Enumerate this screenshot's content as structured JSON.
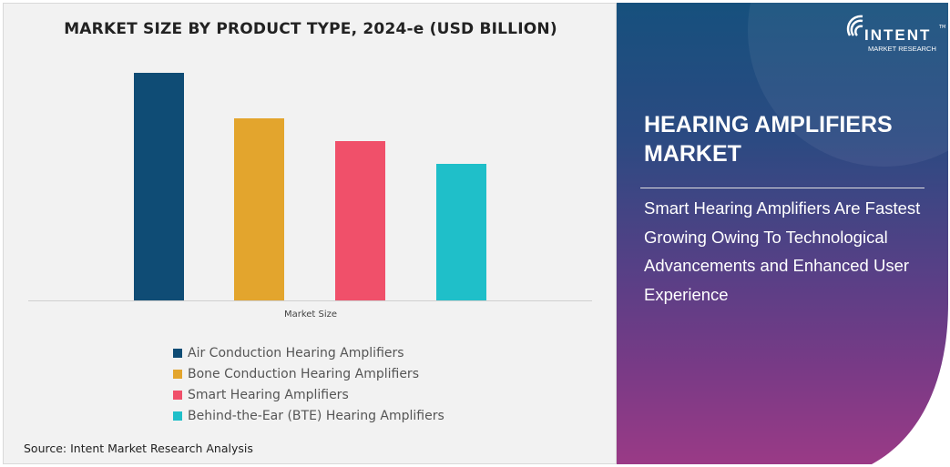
{
  "chart_data": {
    "type": "bar",
    "title": "MARKET SIZE BY PRODUCT TYPE, 2024-e (USD BILLION)",
    "categories": [
      "Market Size"
    ],
    "series": [
      {
        "name": "Air Conduction Hearing Amplifiers",
        "values": [
          1.0
        ],
        "color": "#0f4c75"
      },
      {
        "name": "Bone Conduction Hearing Amplifiers",
        "values": [
          0.8
        ],
        "color": "#e3a52d"
      },
      {
        "name": "Smart Hearing Amplifiers",
        "values": [
          0.7
        ],
        "color": "#f0506a"
      },
      {
        "name": "Behind-the-Ear (BTE) Hearing Amplifiers",
        "values": [
          0.6
        ],
        "color": "#1fbfc9"
      }
    ],
    "ylim": [
      0,
      1.0
    ],
    "value_note_visible": false,
    "grid": false,
    "legend_position": "bottom"
  },
  "source": "Source: Intent Market Research Analysis",
  "panel": {
    "title": "HEARING AMPLIFIERS MARKET",
    "subtitle": "Smart Hearing Amplifiers Are Fastest Growing Owing To Technological Advancements and Enhanced User Experience",
    "logo": {
      "brand": "INTENT",
      "sub": "MARKET RESEARCH",
      "tm": "TM"
    }
  }
}
